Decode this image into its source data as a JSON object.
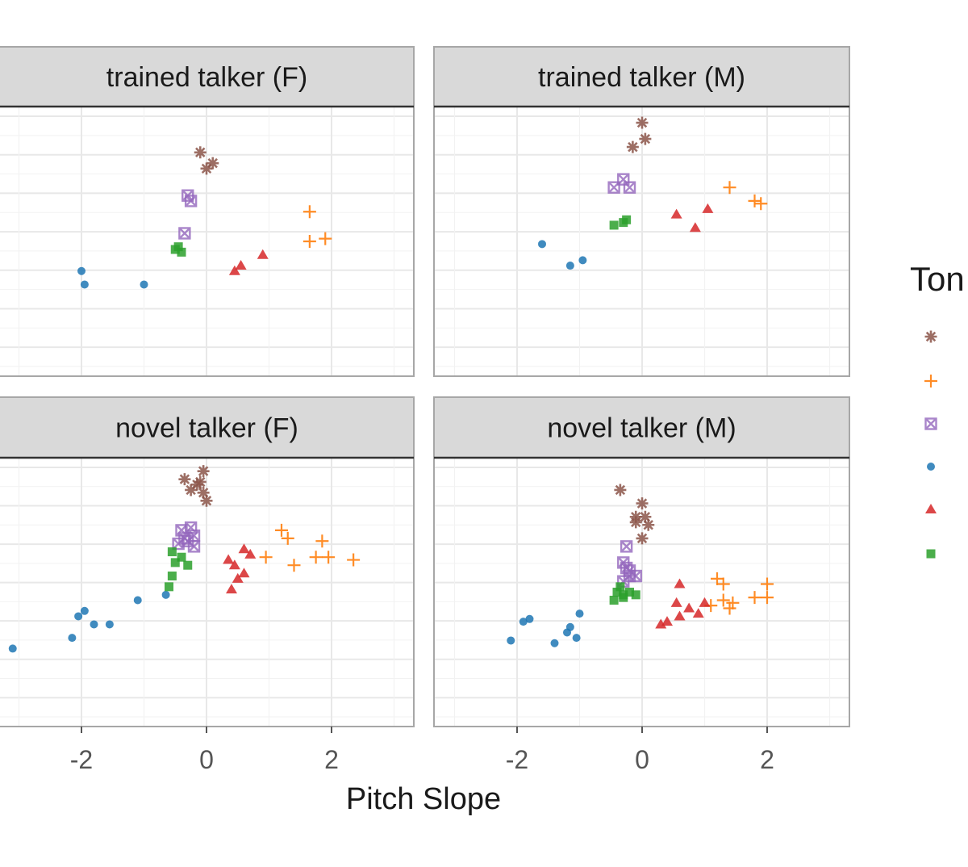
{
  "chart_data": {
    "type": "scatter",
    "xlabel": "Pitch Slope",
    "ylabel": "",
    "xlim": [
      -3.3,
      3.3
    ],
    "x_ticks": [
      -2,
      0,
      2
    ],
    "x_tick_labels": [
      "-2",
      "0",
      "2"
    ],
    "ylim": [
      0,
      1
    ],
    "grid": true,
    "legend": {
      "title": "Ton",
      "placement": "right",
      "shapes": [
        "asterisk",
        "plus",
        "square-x",
        "circle",
        "triangle",
        "square"
      ],
      "colors": [
        "#8c564b",
        "#ff7f0e",
        "#9467bd",
        "#1f77b4",
        "#d62728",
        "#2ca02c"
      ]
    },
    "facets": [
      {
        "label": "trained talker (F)",
        "series": [
          {
            "shape": "asterisk",
            "color": "#8c564b",
            "points": [
              [
                -0.1,
                0.83
              ],
              [
                0.0,
                0.77
              ],
              [
                0.1,
                0.79
              ]
            ]
          },
          {
            "shape": "plus",
            "color": "#ff7f0e",
            "points": [
              [
                1.65,
                0.61
              ],
              [
                1.65,
                0.5
              ],
              [
                1.9,
                0.51
              ]
            ]
          },
          {
            "shape": "square-x",
            "color": "#9467bd",
            "points": [
              [
                -0.3,
                0.67
              ],
              [
                -0.25,
                0.65
              ],
              [
                -0.35,
                0.53
              ]
            ]
          },
          {
            "shape": "circle",
            "color": "#1f77b4",
            "points": [
              [
                -2.0,
                0.39
              ],
              [
                -1.95,
                0.34
              ],
              [
                -1.0,
                0.34
              ]
            ]
          },
          {
            "shape": "triangle",
            "color": "#d62728",
            "points": [
              [
                0.45,
                0.39
              ],
              [
                0.55,
                0.41
              ],
              [
                0.9,
                0.45
              ]
            ]
          },
          {
            "shape": "square",
            "color": "#2ca02c",
            "points": [
              [
                -0.45,
                0.48
              ],
              [
                -0.4,
                0.46
              ],
              [
                -0.5,
                0.47
              ]
            ]
          }
        ]
      },
      {
        "label": "trained talker (M)",
        "series": [
          {
            "shape": "asterisk",
            "color": "#8c564b",
            "points": [
              [
                0.0,
                0.94
              ],
              [
                -0.15,
                0.85
              ],
              [
                0.05,
                0.88
              ]
            ]
          },
          {
            "shape": "plus",
            "color": "#ff7f0e",
            "points": [
              [
                1.4,
                0.7
              ],
              [
                1.8,
                0.65
              ],
              [
                1.9,
                0.64
              ]
            ]
          },
          {
            "shape": "square-x",
            "color": "#9467bd",
            "points": [
              [
                -0.3,
                0.73
              ],
              [
                -0.45,
                0.7
              ],
              [
                -0.2,
                0.7
              ]
            ]
          },
          {
            "shape": "circle",
            "color": "#1f77b4",
            "points": [
              [
                -1.6,
                0.49
              ],
              [
                -1.15,
                0.41
              ],
              [
                -0.95,
                0.43
              ]
            ]
          },
          {
            "shape": "triangle",
            "color": "#d62728",
            "points": [
              [
                0.55,
                0.6
              ],
              [
                0.85,
                0.55
              ],
              [
                1.05,
                0.62
              ]
            ]
          },
          {
            "shape": "square",
            "color": "#2ca02c",
            "points": [
              [
                -0.45,
                0.56
              ],
              [
                -0.3,
                0.57
              ],
              [
                -0.25,
                0.58
              ]
            ]
          }
        ]
      },
      {
        "label": "novel talker (F)",
        "series": [
          {
            "shape": "asterisk",
            "color": "#8c564b",
            "points": [
              [
                -0.35,
                0.92
              ],
              [
                -0.05,
                0.95
              ],
              [
                -0.1,
                0.91
              ],
              [
                -0.05,
                0.87
              ],
              [
                0.0,
                0.84
              ],
              [
                -0.15,
                0.9
              ],
              [
                -0.25,
                0.88
              ]
            ]
          },
          {
            "shape": "plus",
            "color": "#ff7f0e",
            "points": [
              [
                1.2,
                0.73
              ],
              [
                1.3,
                0.7
              ],
              [
                1.85,
                0.69
              ],
              [
                0.95,
                0.63
              ],
              [
                1.4,
                0.6
              ],
              [
                1.75,
                0.63
              ],
              [
                1.95,
                0.63
              ],
              [
                2.35,
                0.62
              ]
            ]
          },
          {
            "shape": "square-x",
            "color": "#9467bd",
            "points": [
              [
                -0.4,
                0.73
              ],
              [
                -0.25,
                0.74
              ],
              [
                -0.2,
                0.71
              ],
              [
                -0.35,
                0.7
              ],
              [
                -0.2,
                0.67
              ],
              [
                -0.45,
                0.68
              ],
              [
                -0.3,
                0.69
              ]
            ]
          },
          {
            "shape": "circle",
            "color": "#1f77b4",
            "points": [
              [
                -3.1,
                0.29
              ],
              [
                -2.15,
                0.33
              ],
              [
                -2.05,
                0.41
              ],
              [
                -1.95,
                0.43
              ],
              [
                -1.8,
                0.38
              ],
              [
                -1.55,
                0.38
              ],
              [
                -1.1,
                0.47
              ],
              [
                -0.65,
                0.49
              ]
            ]
          },
          {
            "shape": "triangle",
            "color": "#d62728",
            "points": [
              [
                0.35,
                0.62
              ],
              [
                0.45,
                0.6
              ],
              [
                0.6,
                0.66
              ],
              [
                0.7,
                0.64
              ],
              [
                0.5,
                0.55
              ],
              [
                0.4,
                0.51
              ],
              [
                0.6,
                0.57
              ]
            ]
          },
          {
            "shape": "square",
            "color": "#2ca02c",
            "points": [
              [
                -0.55,
                0.65
              ],
              [
                -0.5,
                0.61
              ],
              [
                -0.4,
                0.63
              ],
              [
                -0.55,
                0.56
              ],
              [
                -0.6,
                0.52
              ],
              [
                -0.3,
                0.6
              ]
            ]
          }
        ]
      },
      {
        "label": "novel talker (M)",
        "series": [
          {
            "shape": "asterisk",
            "color": "#8c564b",
            "points": [
              [
                -0.35,
                0.88
              ],
              [
                0.0,
                0.83
              ],
              [
                0.05,
                0.78
              ],
              [
                -0.1,
                0.76
              ],
              [
                0.1,
                0.75
              ],
              [
                0.0,
                0.7
              ],
              [
                -0.1,
                0.78
              ]
            ]
          },
          {
            "shape": "plus",
            "color": "#ff7f0e",
            "points": [
              [
                1.2,
                0.55
              ],
              [
                1.3,
                0.53
              ],
              [
                2.0,
                0.53
              ],
              [
                1.3,
                0.47
              ],
              [
                1.45,
                0.46
              ],
              [
                1.8,
                0.48
              ],
              [
                2.0,
                0.48
              ],
              [
                1.1,
                0.45
              ],
              [
                1.4,
                0.44
              ]
            ]
          },
          {
            "shape": "square-x",
            "color": "#9467bd",
            "points": [
              [
                -0.25,
                0.67
              ],
              [
                -0.25,
                0.59
              ],
              [
                -0.2,
                0.56
              ],
              [
                -0.3,
                0.54
              ],
              [
                -0.1,
                0.56
              ],
              [
                -0.3,
                0.61
              ],
              [
                -0.2,
                0.58
              ]
            ]
          },
          {
            "shape": "circle",
            "color": "#1f77b4",
            "points": [
              [
                -2.1,
                0.32
              ],
              [
                -1.9,
                0.39
              ],
              [
                -1.8,
                0.4
              ],
              [
                -1.4,
                0.31
              ],
              [
                -1.2,
                0.35
              ],
              [
                -1.15,
                0.37
              ],
              [
                -1.05,
                0.33
              ],
              [
                -1.0,
                0.42
              ]
            ]
          },
          {
            "shape": "triangle",
            "color": "#d62728",
            "points": [
              [
                0.3,
                0.38
              ],
              [
                0.4,
                0.39
              ],
              [
                0.6,
                0.41
              ],
              [
                0.6,
                0.53
              ],
              [
                0.55,
                0.46
              ],
              [
                0.75,
                0.44
              ],
              [
                0.9,
                0.42
              ],
              [
                1.0,
                0.46
              ]
            ]
          },
          {
            "shape": "square",
            "color": "#2ca02c",
            "points": [
              [
                -0.4,
                0.5
              ],
              [
                -0.3,
                0.49
              ],
              [
                -0.2,
                0.5
              ],
              [
                -0.45,
                0.47
              ],
              [
                -0.3,
                0.48
              ],
              [
                -0.1,
                0.49
              ],
              [
                -0.35,
                0.52
              ]
            ]
          }
        ]
      }
    ]
  }
}
